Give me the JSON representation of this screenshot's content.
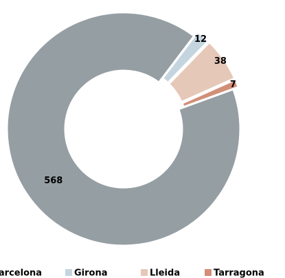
{
  "chart_data": {
    "type": "donut",
    "categories": [
      "Barcelona",
      "Girona",
      "Lleida",
      "Tarragona"
    ],
    "values": [
      568,
      12,
      38,
      7
    ],
    "colors": [
      "#959ea3",
      "#c5d5e0",
      "#e6c8b8",
      "#d28f78"
    ],
    "legend": "bottom"
  }
}
